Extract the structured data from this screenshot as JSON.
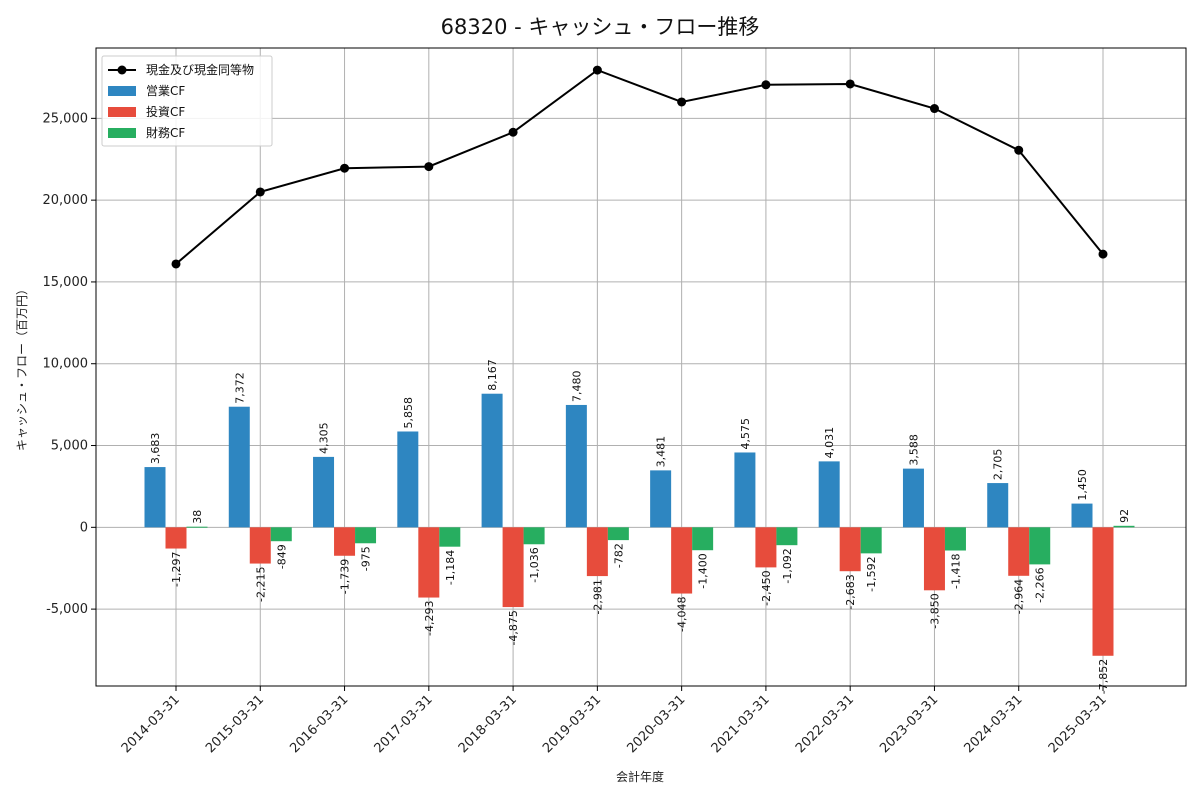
{
  "chart_data": {
    "type": "bar",
    "title": "68320 - キャッシュ・フロー推移",
    "xlabel": "会計年度",
    "ylabel": "キャッシュ・フロー（百万円）",
    "ylim": [
      -9700,
      29300
    ],
    "yticks": [
      -5000,
      0,
      5000,
      10000,
      15000,
      20000,
      25000
    ],
    "ytick_labels": [
      "-5,000",
      "0",
      "5,000",
      "10,000",
      "15,000",
      "20,000",
      "25,000"
    ],
    "grid": true,
    "legend_position": "top-left",
    "categories": [
      "2014-03-31",
      "2015-03-31",
      "2016-03-31",
      "2017-03-31",
      "2018-03-31",
      "2019-03-31",
      "2020-03-31",
      "2021-03-31",
      "2022-03-31",
      "2023-03-31",
      "2024-03-31",
      "2025-03-31"
    ],
    "series": [
      {
        "name": "営業CF",
        "kind": "bar",
        "color": "#2e86c1",
        "values": [
          3683,
          7372,
          4305,
          5858,
          8167,
          7480,
          3481,
          4575,
          4031,
          3588,
          2705,
          1450
        ],
        "labels": [
          "3,683",
          "7,372",
          "4,305",
          "5,858",
          "8,167",
          "7,480",
          "3,481",
          "4,575",
          "4,031",
          "3,588",
          "2,705",
          "1,450"
        ]
      },
      {
        "name": "投資CF",
        "kind": "bar",
        "color": "#e74c3c",
        "values": [
          -1297,
          -2215,
          -1739,
          -4293,
          -4875,
          -2981,
          -4048,
          -2450,
          -2683,
          -3850,
          -2964,
          -7852
        ],
        "labels": [
          "-1,297",
          "-2,215",
          "-1,739",
          "-4,293",
          "-4,875",
          "-2,981",
          "-4,048",
          "-2,450",
          "-2,683",
          "-3,850",
          "-2,964",
          "-7,852"
        ]
      },
      {
        "name": "財務CF",
        "kind": "bar",
        "color": "#27ae60",
        "values": [
          38,
          -849,
          -975,
          -1184,
          -1036,
          -782,
          -1400,
          -1092,
          -1592,
          -1418,
          -2266,
          92
        ],
        "labels": [
          "38",
          "-849",
          "-975",
          "-1,184",
          "-1,036",
          "-782",
          "-1,400",
          "-1,092",
          "-1,592",
          "-1,418",
          "-2,266",
          "92"
        ]
      },
      {
        "name": "現金及び現金同等物",
        "kind": "line",
        "color": "#000000",
        "values": [
          16100,
          20500,
          21950,
          22050,
          24150,
          27950,
          26000,
          27050,
          27100,
          25600,
          23050,
          16700
        ]
      }
    ]
  }
}
